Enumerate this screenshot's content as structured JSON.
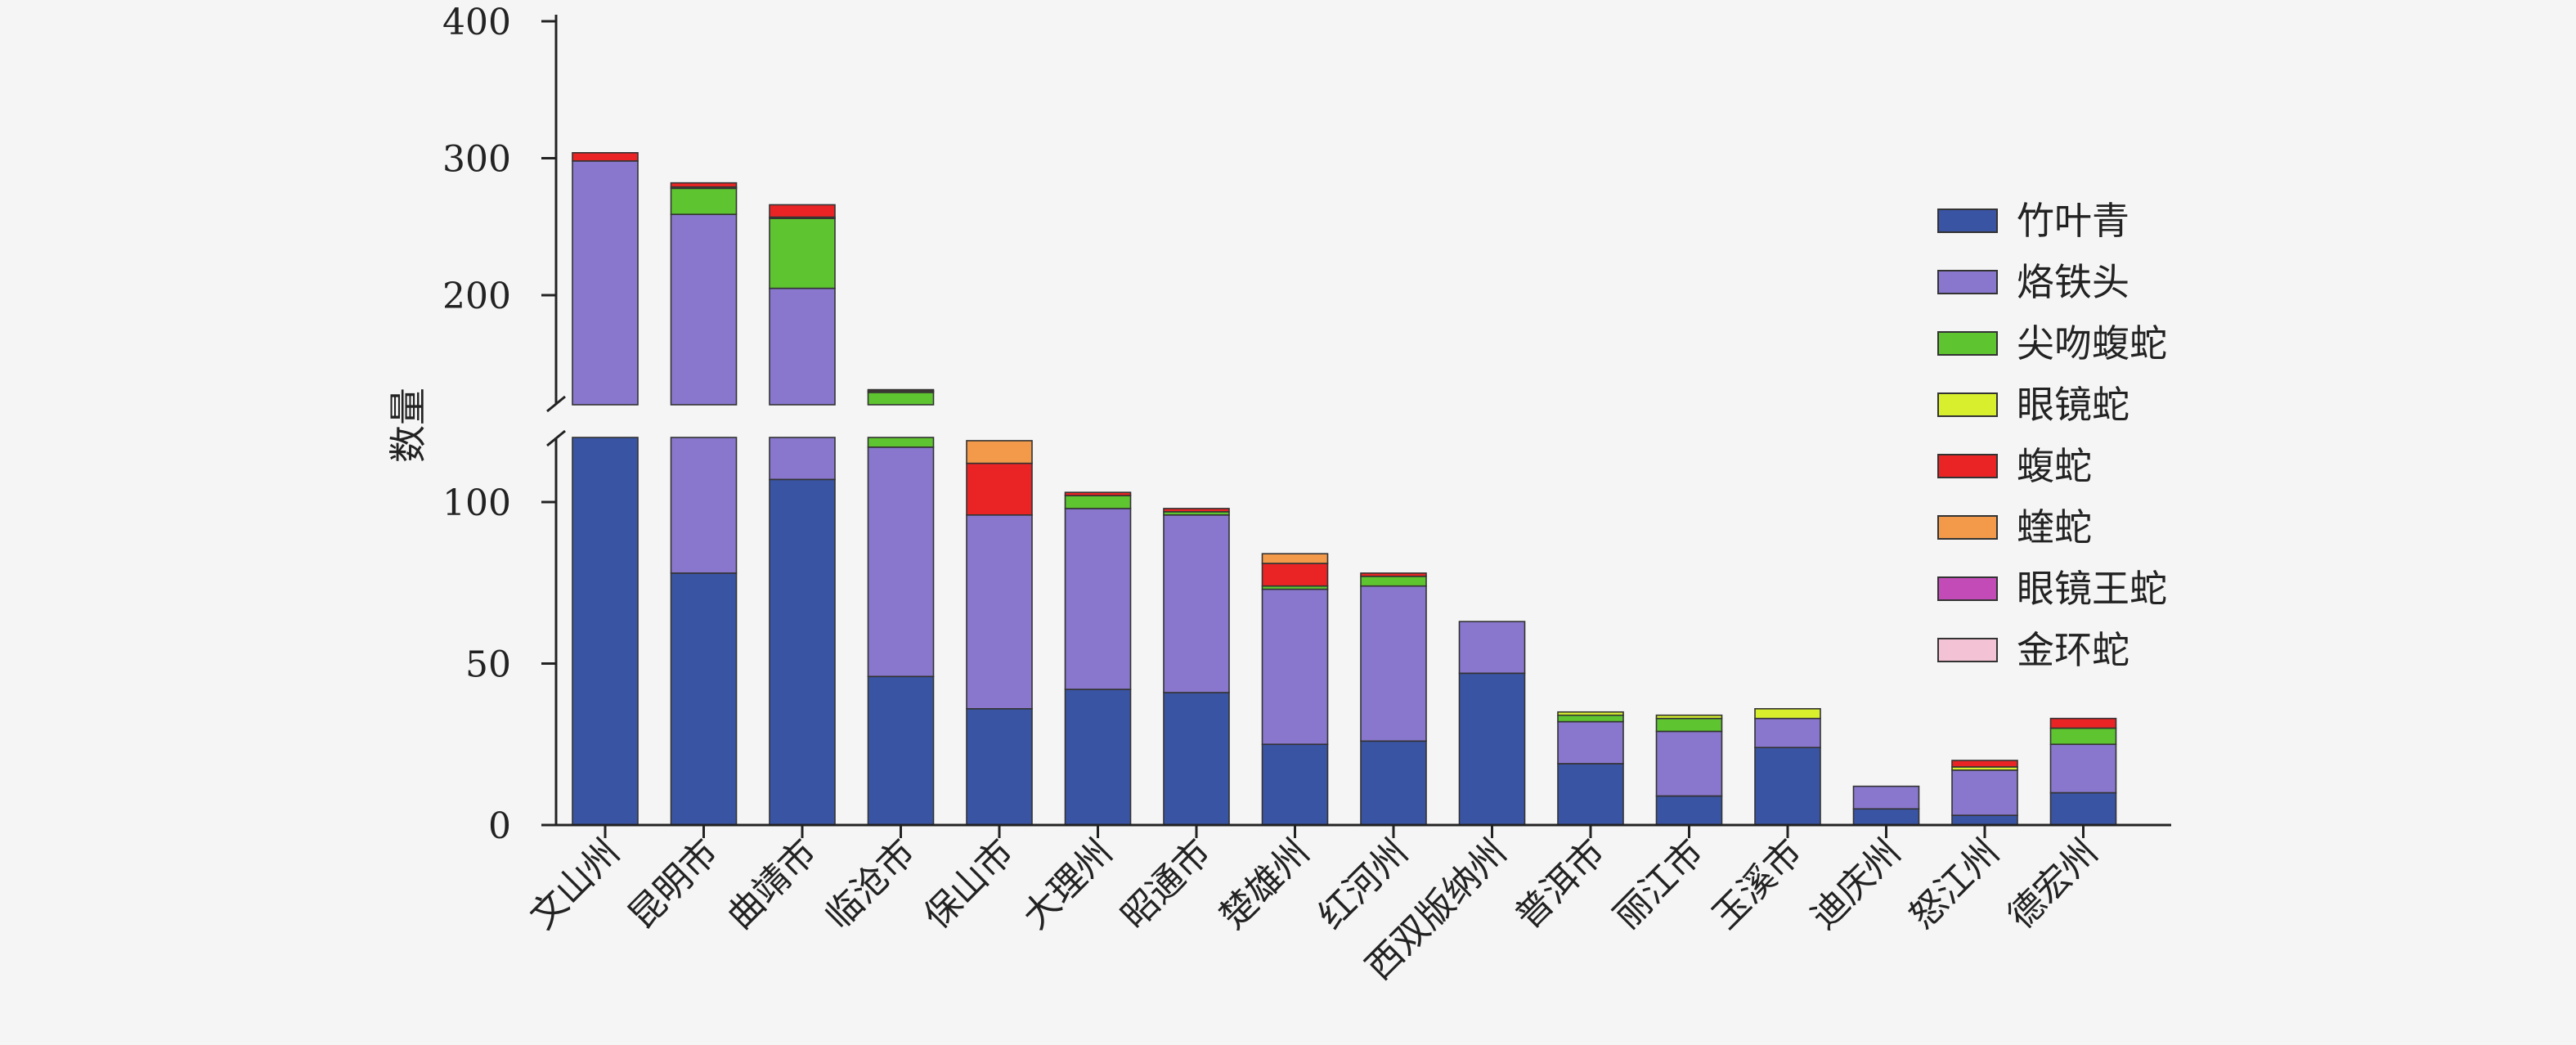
{
  "chart_data": {
    "type": "bar",
    "stacked": true,
    "broken_axis": true,
    "ylabel": "数量",
    "ylim_lower": [
      0,
      120
    ],
    "ylim_upper": [
      120,
      400
    ],
    "yticks_lower": [
      "0",
      "50",
      "100"
    ],
    "yticks_upper": [
      "200",
      "300",
      "400"
    ],
    "legend_position": "right",
    "categories": [
      "文山州",
      "昆明市",
      "曲靖市",
      "临沧市",
      "保山市",
      "大理州",
      "昭通市",
      "楚雄州",
      "红河州",
      "西双版纳州",
      "普洱市",
      "丽江市",
      "玉溪市",
      "迪庆州",
      "怒江州",
      "德宏州"
    ],
    "series": [
      {
        "name": "竹叶青",
        "color": "#3a54a4",
        "values": [
          120,
          78,
          107,
          46,
          36,
          42,
          41,
          25,
          26,
          47,
          19,
          9,
          24,
          5,
          3,
          10
        ]
      },
      {
        "name": "烙铁头",
        "color": "#8877cc",
        "values": [
          178,
          181,
          98,
          71,
          60,
          56,
          55,
          48,
          48,
          16,
          13,
          20,
          9,
          7,
          14,
          15
        ]
      },
      {
        "name": "尖吻蝮蛇",
        "color": "#5ec42f",
        "values": [
          0,
          19,
          51,
          12,
          0,
          4,
          1,
          1,
          3,
          0,
          2,
          4,
          0,
          0,
          0,
          5
        ]
      },
      {
        "name": "眼镜蛇",
        "color": "#d8ef2e",
        "values": [
          0,
          1,
          1,
          1,
          0,
          0,
          0,
          0,
          0,
          0,
          1,
          1,
          3,
          0,
          1,
          0
        ]
      },
      {
        "name": "蝮蛇",
        "color": "#ea2424",
        "values": [
          6,
          3,
          9,
          1,
          16,
          1,
          1,
          7,
          1,
          0,
          0,
          0,
          0,
          0,
          2,
          3
        ]
      },
      {
        "name": "蝰蛇",
        "color": "#f29a4a",
        "values": [
          0,
          0,
          0,
          0,
          7,
          0,
          0,
          3,
          0,
          0,
          0,
          0,
          0,
          0,
          0,
          0
        ]
      },
      {
        "name": "眼镜王蛇",
        "color": "#c24bb8",
        "values": [
          0,
          0,
          0,
          0,
          0,
          0,
          0,
          0,
          0,
          0,
          0,
          0,
          0,
          0,
          0,
          0
        ]
      },
      {
        "name": "金环蛇",
        "color": "#f3c2d4",
        "values": [
          0,
          0,
          0,
          0,
          0,
          0,
          0,
          0,
          0,
          0,
          0,
          0,
          0,
          0,
          0,
          0
        ]
      }
    ]
  }
}
